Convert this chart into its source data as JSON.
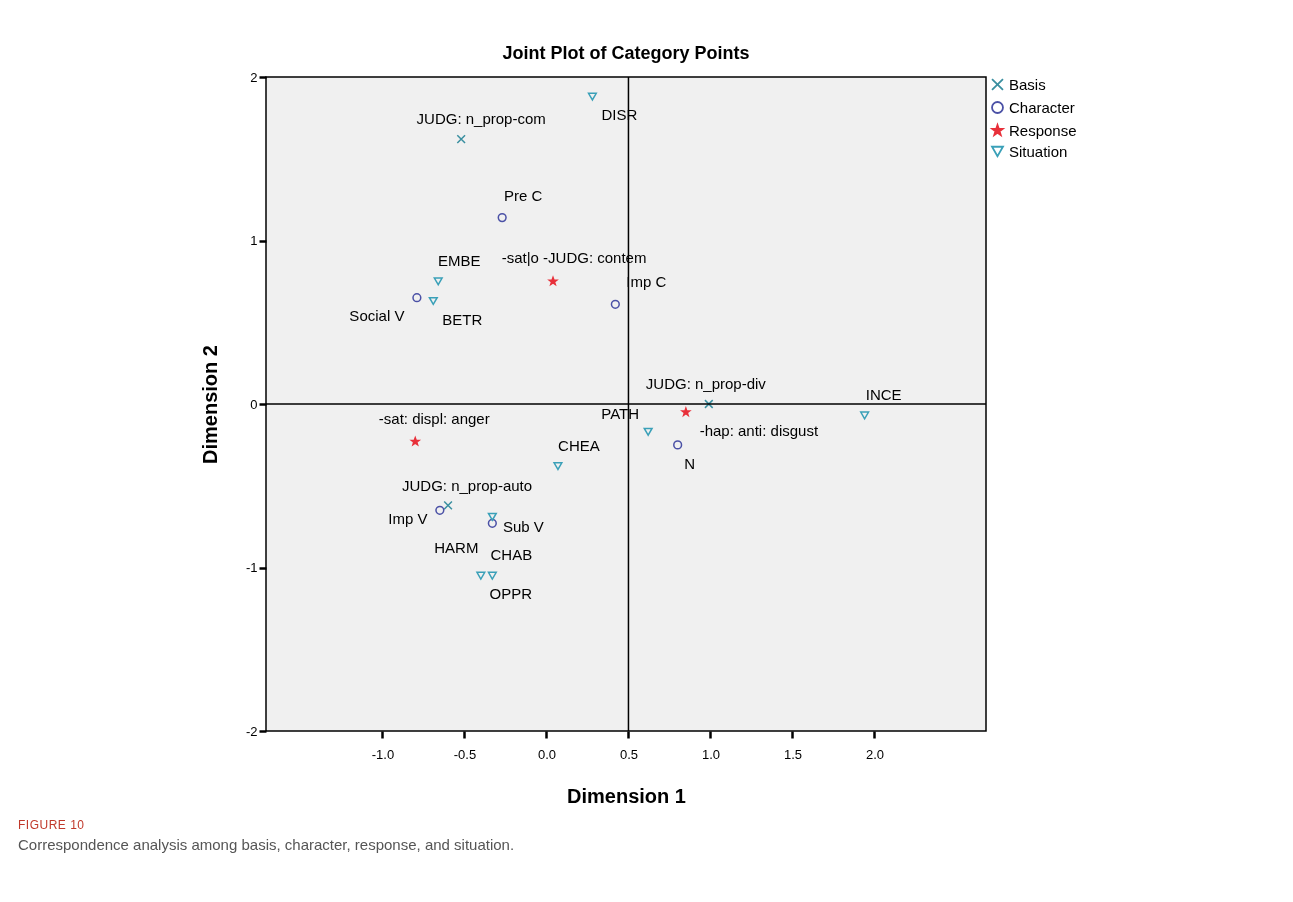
{
  "chart_data": {
    "type": "scatter",
    "title": "Joint Plot of Category Points",
    "xlabel": "Dimension 1",
    "ylabel": "Dimension 2",
    "xlim": [
      -1.71,
      2.68
    ],
    "ylim": [
      -2,
      2
    ],
    "xticks": [
      {
        "value": -1,
        "label": "-1.0"
      },
      {
        "value": -0.5,
        "label": "-0.5"
      },
      {
        "value": 0,
        "label": "0.0"
      },
      {
        "value": 0.5,
        "label": "0.5"
      },
      {
        "value": 1,
        "label": "1.0"
      },
      {
        "value": 1.5,
        "label": "1.5"
      },
      {
        "value": 2,
        "label": "2.0"
      }
    ],
    "yticks": [
      -2,
      -1,
      0,
      1,
      2
    ],
    "grid": false,
    "legend": "top right",
    "ref_lines": [
      {
        "axis": "x",
        "value": 0.5,
        "color": "#000000"
      },
      {
        "axis": "y",
        "value": 0,
        "color": "#000000"
      }
    ],
    "series": [
      {
        "name": "Basis",
        "color": "#3a8fa0",
        "marker": "cross",
        "x": [
          -0.52,
          0.99,
          -0.6
        ],
        "values": [
          1.62,
          0.0,
          -0.62
        ]
      },
      {
        "name": "Character",
        "color": "#4b51a6",
        "marker": "circle",
        "x": [
          -0.27,
          -0.79,
          0.42,
          -0.65,
          -0.33,
          0.8
        ],
        "values": [
          1.14,
          0.65,
          0.61,
          -0.65,
          -0.73,
          -0.25
        ]
      },
      {
        "name": "Response",
        "color": "#e8303a",
        "marker": "star",
        "x": [
          0.04,
          -0.8,
          0.85
        ],
        "values": [
          0.75,
          -0.23,
          -0.05
        ]
      },
      {
        "name": "Situation",
        "color": "#3aa0b8",
        "marker": "triangle",
        "x": [
          0.28,
          -0.66,
          -0.69,
          0.62,
          0.07,
          1.94,
          -0.33,
          -0.33,
          -0.4
        ],
        "values": [
          1.88,
          0.75,
          0.63,
          -0.17,
          -0.38,
          -0.07,
          -0.69,
          -1.05,
          -1.05
        ]
      }
    ],
    "annotations": [
      {
        "text": "JUDG: n_prop-com",
        "x": -0.52,
        "y": 1.62
      },
      {
        "text": "DISR",
        "x": 0.28,
        "y": 1.88
      },
      {
        "text": "Pre C",
        "x": -0.27,
        "y": 1.14
      },
      {
        "text": "EMBE",
        "x": -0.66,
        "y": 0.75
      },
      {
        "text": "-sat|o -JUDG: contem",
        "x": 0.04,
        "y": 0.75
      },
      {
        "text": "Imp C",
        "x": 0.42,
        "y": 0.61
      },
      {
        "text": "Social V",
        "x": -0.79,
        "y": 0.65
      },
      {
        "text": "BETR",
        "x": -0.69,
        "y": 0.63
      },
      {
        "text": "JUDG: n_prop-div",
        "x": 0.99,
        "y": 0.0
      },
      {
        "text": "INCE",
        "x": 1.94,
        "y": -0.07
      },
      {
        "text": "PATH",
        "x": 0.62,
        "y": -0.17
      },
      {
        "text": "-sat: displ: anger",
        "x": -0.8,
        "y": -0.23
      },
      {
        "text": "-hap: anti: disgust",
        "x": 0.85,
        "y": -0.05
      },
      {
        "text": "CHEA",
        "x": 0.07,
        "y": -0.38
      },
      {
        "text": "N",
        "x": 0.8,
        "y": -0.25
      },
      {
        "text": "JUDG: n_prop-auto",
        "x": -0.6,
        "y": -0.62
      },
      {
        "text": "Imp V",
        "x": -0.65,
        "y": -0.65
      },
      {
        "text": "Sub V",
        "x": -0.33,
        "y": -0.73
      },
      {
        "text": "HARM",
        "x": -0.33,
        "y": -0.69
      },
      {
        "text": "CHAB",
        "x": -0.33,
        "y": -1.05
      },
      {
        "text": "OPPR",
        "x": -0.4,
        "y": -1.05
      },
      "FIGURE 10",
      "Correspondence analysis among basis, character, response, and situation."
    ]
  }
}
